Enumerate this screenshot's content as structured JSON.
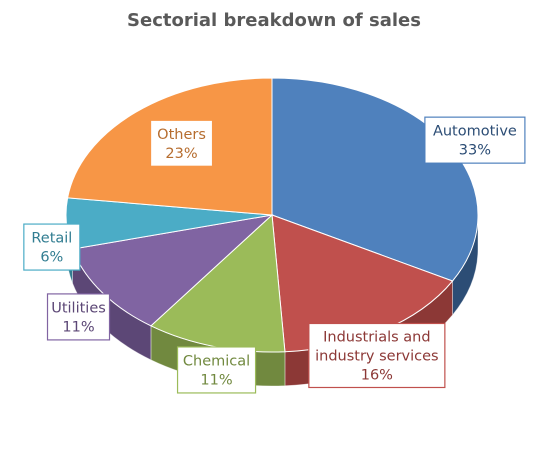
{
  "chart_data": {
    "type": "pie",
    "title": "Sectorial breakdown of sales",
    "style": "3d",
    "slices": [
      {
        "name": "Automotive",
        "value": 33,
        "label": "33%",
        "color": "#4f81bd",
        "side": "#2c4d75"
      },
      {
        "name": "Industrials and industry services",
        "line1": "Industrials and",
        "line2": "industry services",
        "value": 16,
        "label": "16%",
        "color": "#c0504d",
        "side": "#8c3836"
      },
      {
        "name": "Chemical",
        "value": 11,
        "label": "11%",
        "color": "#9bbb59",
        "side": "#71893f"
      },
      {
        "name": "Utilities",
        "value": 11,
        "label": "11%",
        "color": "#8064a2",
        "side": "#5c4776"
      },
      {
        "name": "Retail",
        "value": 6,
        "label": "6%",
        "color": "#4bacc6",
        "side": "#317d91"
      },
      {
        "name": "Others",
        "value": 23,
        "label": "23%",
        "color": "#f79646",
        "side": "#b66d2f"
      }
    ]
  }
}
